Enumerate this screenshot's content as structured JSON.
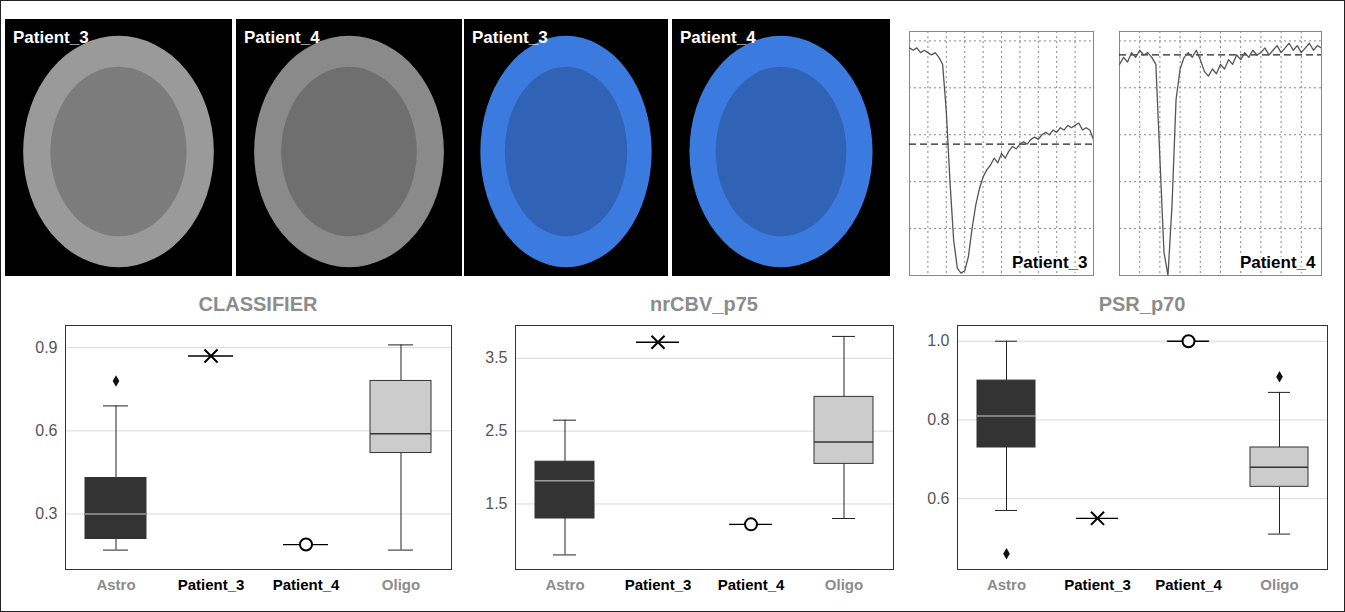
{
  "chart_data": [
    {
      "type": "image",
      "title": "Patient_3",
      "color": "#9a9a9a"
    },
    {
      "type": "image",
      "title": "Patient_4",
      "color": "#8a8a8a"
    },
    {
      "type": "image",
      "title": "Patient_3",
      "color": "#3b7be0"
    },
    {
      "type": "image",
      "title": "Patient_4",
      "color": "#3b7be0"
    },
    {
      "type": "line",
      "title": "Patient_3",
      "color": "#555555",
      "grid": true,
      "tick_labels": false,
      "reference": 0.56,
      "x": [
        0,
        1,
        2,
        3,
        4,
        5,
        6,
        7,
        8,
        9,
        10,
        11,
        12,
        13,
        14,
        15,
        16,
        17,
        18,
        19,
        20,
        21,
        22,
        23,
        24,
        25,
        26,
        27,
        28,
        29,
        30,
        31,
        32,
        33,
        34,
        35,
        36,
        37,
        38,
        39,
        40,
        41,
        42,
        43,
        44,
        45,
        46,
        47,
        48,
        49,
        50
      ],
      "values": [
        0.97,
        0.96,
        0.97,
        0.95,
        0.96,
        0.95,
        0.94,
        0.95,
        0.93,
        0.9,
        0.7,
        0.4,
        0.15,
        0.03,
        0.01,
        0.02,
        0.08,
        0.2,
        0.3,
        0.37,
        0.42,
        0.45,
        0.47,
        0.5,
        0.48,
        0.52,
        0.5,
        0.53,
        0.55,
        0.54,
        0.56,
        0.57,
        0.56,
        0.58,
        0.59,
        0.58,
        0.6,
        0.61,
        0.6,
        0.62,
        0.61,
        0.63,
        0.62,
        0.64,
        0.63,
        0.64,
        0.65,
        0.62,
        0.63,
        0.62,
        0.58
      ],
      "xlim": [
        0,
        50
      ],
      "xticks": [
        0,
        5,
        10,
        15,
        20,
        25,
        30,
        35,
        40,
        45,
        50
      ],
      "ylim": [
        0,
        1.04
      ],
      "yticks": [
        0,
        0.2,
        0.4,
        0.6,
        0.8,
        1
      ]
    },
    {
      "type": "line",
      "title": "Patient_4",
      "color": "#555555",
      "grid": true,
      "tick_labels": false,
      "reference": 0.94,
      "x": [
        0,
        1,
        2,
        3,
        4,
        5,
        6,
        7,
        8,
        9,
        10,
        11,
        12,
        13,
        14,
        15,
        16,
        17,
        18,
        19,
        20,
        21,
        22,
        23,
        24,
        25,
        26,
        27,
        28,
        29,
        30,
        31,
        32,
        33,
        34,
        35,
        36,
        37,
        38,
        39,
        40,
        41,
        42,
        43,
        44,
        45,
        46,
        47,
        48,
        49,
        50
      ],
      "values": [
        0.9,
        0.93,
        0.91,
        0.95,
        0.93,
        0.96,
        0.94,
        0.95,
        0.93,
        0.9,
        0.5,
        0.1,
        0,
        0.3,
        0.75,
        0.88,
        0.93,
        0.95,
        0.93,
        0.96,
        0.92,
        0.87,
        0.85,
        0.88,
        0.86,
        0.9,
        0.88,
        0.92,
        0.9,
        0.94,
        0.92,
        0.95,
        0.93,
        0.96,
        0.94,
        0.95,
        0.97,
        0.94,
        0.96,
        0.98,
        0.95,
        0.97,
        0.99,
        0.96,
        0.98,
        0.95,
        0.97,
        0.99,
        0.96,
        0.98,
        0.97
      ],
      "xlim": [
        0,
        50
      ],
      "xticks": [
        0,
        5,
        10,
        15,
        20,
        25,
        30,
        35,
        40,
        45,
        50
      ],
      "ylim": [
        0,
        1.04
      ],
      "yticks": [
        0,
        0.2,
        0.4,
        0.6,
        0.8,
        1
      ]
    },
    {
      "type": "box",
      "title": "CLASSIFIER",
      "grid": true,
      "categories": [
        "Astro",
        "Patient_3",
        "Patient_4",
        "Oligo"
      ],
      "boxes": [
        {
          "name": "Astro",
          "color": "#333333",
          "marker": "diamond",
          "whisker_low": 0.17,
          "q1": 0.21,
          "median": 0.3,
          "q3": 0.43,
          "whisker_high": 0.69,
          "outliers": [
            0.78
          ]
        },
        {
          "name": "Oligo",
          "color": "#cccccc",
          "marker": "diamond",
          "whisker_low": 0.17,
          "q1": 0.52,
          "median": 0.59,
          "q3": 0.78,
          "whisker_high": 0.91,
          "outliers": []
        }
      ],
      "points": [
        {
          "name": "Patient_3",
          "value": 0.87,
          "marker": "x"
        },
        {
          "name": "Patient_4",
          "value": 0.19,
          "marker": "o"
        }
      ],
      "ylim": [
        0.1,
        0.98
      ],
      "yticks": [
        0.3,
        0.6,
        0.9
      ]
    },
    {
      "type": "box",
      "title": "nrCBV_p75",
      "grid": true,
      "categories": [
        "Astro",
        "Patient_3",
        "Patient_4",
        "Oligo"
      ],
      "boxes": [
        {
          "name": "Astro",
          "color": "#333333",
          "marker": "diamond",
          "whisker_low": 0.8,
          "q1": 1.3,
          "median": 1.82,
          "q3": 2.08,
          "whisker_high": 2.65,
          "outliers": []
        },
        {
          "name": "Oligo",
          "color": "#cccccc",
          "marker": "diamond",
          "whisker_low": 1.3,
          "q1": 2.05,
          "median": 2.35,
          "q3": 2.97,
          "whisker_high": 3.8,
          "outliers": []
        }
      ],
      "points": [
        {
          "name": "Patient_3",
          "value": 3.72,
          "marker": "x"
        },
        {
          "name": "Patient_4",
          "value": 1.22,
          "marker": "o"
        }
      ],
      "ylim": [
        0.6,
        3.95
      ],
      "yticks": [
        1.5,
        2.5,
        3.5
      ]
    },
    {
      "type": "box",
      "title": "PSR_p70",
      "grid": true,
      "categories": [
        "Astro",
        "Patient_3",
        "Patient_4",
        "Oligo"
      ],
      "boxes": [
        {
          "name": "Astro",
          "color": "#333333",
          "marker": "diamond",
          "whisker_low": 0.57,
          "q1": 0.73,
          "median": 0.81,
          "q3": 0.9,
          "whisker_high": 1,
          "outliers": [
            0.46
          ]
        },
        {
          "name": "Oligo",
          "color": "#cccccc",
          "marker": "diamond",
          "whisker_low": 0.51,
          "q1": 0.63,
          "median": 0.68,
          "q3": 0.73,
          "whisker_high": 0.87,
          "outliers": [
            0.91
          ]
        }
      ],
      "points": [
        {
          "name": "Patient_3",
          "value": 0.55,
          "marker": "x"
        },
        {
          "name": "Patient_4",
          "value": 1,
          "marker": "o"
        }
      ],
      "ylim": [
        0.42,
        1.04
      ],
      "yticks": [
        0.6,
        0.8,
        {
          "value": 1,
          "label": "1.0"
        }
      ]
    }
  ]
}
